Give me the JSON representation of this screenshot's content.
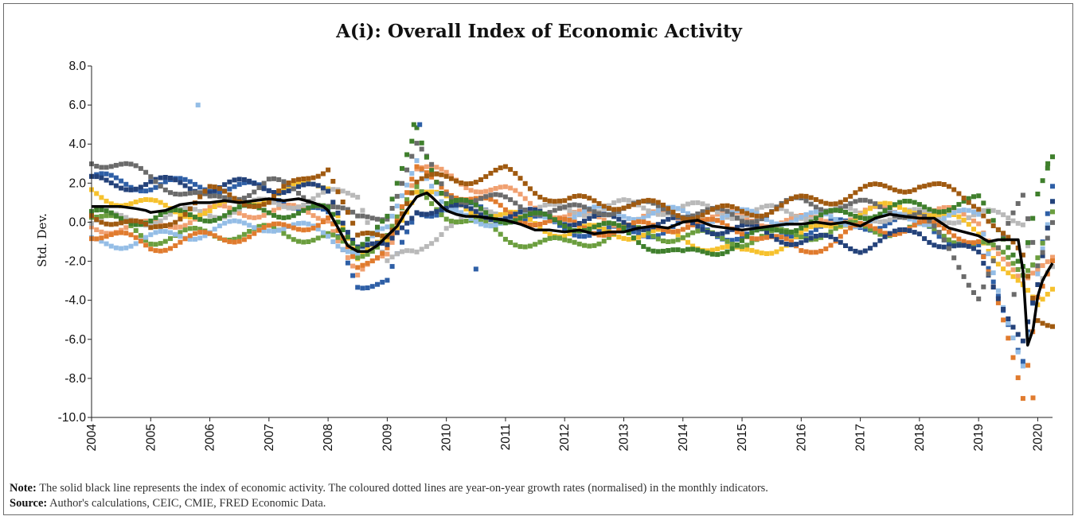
{
  "title": "A(i): Overall Index of Economic Activity",
  "note_label": "Note:",
  "note_text": " The solid black line represents the index of economic activity. The coloured dotted lines are year-on-year growth rates (normalised) in the monthly indicators.",
  "source_label": "Source:",
  "source_text": " Author's calculations, CEIC, CMIE, FRED Economic Data.",
  "chart_data": {
    "type": "line",
    "title": "A(i): Overall Index of Economic Activity",
    "ylabel": "Std. Dev.",
    "xlabel": "",
    "xlim": [
      2004.0,
      2020.25
    ],
    "ylim": [
      -10.0,
      8.0
    ],
    "yticks": [
      -10.0,
      -8.0,
      -6.0,
      -4.0,
      -2.0,
      0.0,
      2.0,
      4.0,
      6.0,
      8.0
    ],
    "ytick_labels": [
      "-10.0",
      "-8.0",
      "-6.0",
      "-4.0",
      "-2.0",
      "0.0",
      "2.0",
      "4.0",
      "6.0",
      "8.0"
    ],
    "xticks": [
      2004,
      2005,
      2006,
      2007,
      2008,
      2009,
      2010,
      2011,
      2012,
      2013,
      2014,
      2015,
      2016,
      2017,
      2018,
      2019,
      2020
    ],
    "xtick_labels": [
      "2004",
      "2005",
      "2006",
      "2007",
      "2008",
      "2009",
      "2010",
      "2011",
      "2012",
      "2013",
      "2014",
      "2015",
      "2016",
      "2017",
      "2018",
      "2019",
      "2020"
    ],
    "grid": false,
    "legend": "none",
    "index_color": "#000000",
    "indicator_colors": [
      "#2e5fa6",
      "#f0a070",
      "#b9b9b9",
      "#f6c12d",
      "#6b9e3e",
      "#94bde6",
      "#e07b2e",
      "#24427a",
      "#6b6b6b",
      "#3f7f2c",
      "#a05a10"
    ],
    "index_series": {
      "name": "Index of economic activity",
      "x": [
        2004.0,
        2004.25,
        2004.5,
        2004.75,
        2004.92,
        2005.0,
        2005.25,
        2005.5,
        2005.75,
        2006.0,
        2006.25,
        2006.5,
        2006.75,
        2007.0,
        2007.25,
        2007.5,
        2007.75,
        2007.92,
        2008.0,
        2008.17,
        2008.33,
        2008.5,
        2008.67,
        2008.83,
        2009.0,
        2009.17,
        2009.33,
        2009.5,
        2009.58,
        2009.67,
        2009.75,
        2009.92,
        2010.0,
        2010.17,
        2010.33,
        2010.5,
        2010.75,
        2011.0,
        2011.25,
        2011.5,
        2011.75,
        2012.0,
        2012.25,
        2012.5,
        2012.75,
        2013.0,
        2013.25,
        2013.5,
        2013.75,
        2014.0,
        2014.25,
        2014.5,
        2014.75,
        2015.0,
        2015.25,
        2015.5,
        2015.75,
        2016.0,
        2016.25,
        2016.5,
        2016.75,
        2017.0,
        2017.25,
        2017.5,
        2017.75,
        2018.0,
        2018.25,
        2018.5,
        2018.75,
        2019.0,
        2019.17,
        2019.33,
        2019.5,
        2019.67,
        2019.75,
        2019.83,
        2019.92,
        2020.0,
        2020.08,
        2020.17,
        2020.25
      ],
      "y": [
        0.8,
        0.8,
        0.8,
        0.7,
        0.6,
        0.5,
        0.6,
        0.9,
        1.0,
        1.0,
        1.1,
        1.0,
        1.1,
        1.2,
        1.1,
        1.2,
        1.0,
        0.8,
        0.6,
        -0.3,
        -1.2,
        -1.5,
        -1.5,
        -1.2,
        -0.7,
        -0.2,
        0.6,
        1.3,
        1.4,
        1.5,
        1.3,
        0.8,
        0.6,
        0.4,
        0.3,
        0.3,
        0.2,
        0.1,
        -0.1,
        -0.4,
        -0.4,
        -0.5,
        -0.4,
        -0.6,
        -0.5,
        -0.5,
        -0.3,
        -0.2,
        -0.3,
        0.0,
        0.1,
        -0.2,
        -0.3,
        -0.4,
        -0.3,
        -0.2,
        -0.1,
        -0.1,
        0.0,
        -0.1,
        0.0,
        -0.2,
        0.2,
        0.4,
        0.3,
        0.2,
        0.2,
        -0.3,
        -0.5,
        -0.7,
        -1.0,
        -0.9,
        -0.9,
        -0.9,
        -2.5,
        -6.3,
        -5.5,
        -3.8,
        -3.0,
        -2.5,
        -2.1
      ]
    },
    "indicator_series": [
      {
        "color": "#2e5fa6",
        "x": [
          2004.0,
          2005.0,
          2006.0,
          2007.0,
          2008.0,
          2008.5,
          2009.0,
          2009.5,
          2010.0,
          2011.0,
          2012.0,
          2013.0,
          2014.0,
          2015.0,
          2016.0,
          2017.0,
          2018.0,
          2019.0,
          2019.75,
          2020.0,
          2020.25
        ],
        "y": [
          2.2,
          1.9,
          1.9,
          1.6,
          0.2,
          -3.0,
          -3.2,
          0.5,
          0.8,
          0.4,
          -0.3,
          -0.6,
          -0.2,
          -0.7,
          -0.4,
          -0.1,
          0.1,
          -1.5,
          -6.8,
          -2.5,
          1.5
        ]
      },
      {
        "color": "#f0a070",
        "x": [
          2004.0,
          2005.0,
          2006.0,
          2007.0,
          2008.0,
          2008.5,
          2009.0,
          2009.5,
          2010.0,
          2011.0,
          2012.0,
          2013.0,
          2014.0,
          2015.0,
          2016.0,
          2017.0,
          2018.0,
          2019.0,
          2019.75,
          2020.0,
          2020.25
        ],
        "y": [
          -0.2,
          -0.3,
          0.5,
          0.6,
          0.4,
          -3.0,
          -1.5,
          2.8,
          2.3,
          1.5,
          0.3,
          0.1,
          0.3,
          0.2,
          0.0,
          0.4,
          0.6,
          0.2,
          -3.5,
          -2.5,
          -1.5
        ]
      },
      {
        "color": "#b9b9b9",
        "x": [
          2004.0,
          2005.0,
          2006.0,
          2007.0,
          2008.0,
          2008.5,
          2009.0,
          2009.5,
          2010.0,
          2011.0,
          2012.0,
          2013.0,
          2014.0,
          2015.0,
          2016.0,
          2017.0,
          2018.0,
          2019.0,
          2019.75,
          2020.0,
          2020.25
        ],
        "y": [
          0.0,
          0.2,
          0.5,
          0.9,
          1.3,
          1.5,
          -2.0,
          -1.7,
          0.0,
          0.5,
          0.6,
          0.8,
          0.7,
          0.5,
          0.5,
          0.4,
          0.3,
          0.3,
          0.2,
          -3.0,
          -2.5
        ]
      },
      {
        "color": "#f6c12d",
        "x": [
          2004.0,
          2005.0,
          2006.0,
          2007.0,
          2008.0,
          2008.5,
          2009.0,
          2009.5,
          2010.0,
          2011.0,
          2012.0,
          2013.0,
          2014.0,
          2015.0,
          2016.0,
          2017.0,
          2018.0,
          2019.0,
          2019.75,
          2020.0,
          2020.25
        ],
        "y": [
          1.5,
          0.8,
          0.5,
          1.4,
          2.0,
          -2.0,
          -1.0,
          1.8,
          1.0,
          0.3,
          -0.5,
          -0.5,
          -0.8,
          -1.7,
          -0.8,
          0.5,
          0.8,
          -0.5,
          -3.5,
          -4.5,
          -3.3
        ]
      },
      {
        "color": "#6b9e3e",
        "x": [
          2004.0,
          2005.0,
          2006.0,
          2007.0,
          2008.0,
          2008.5,
          2009.0,
          2009.5,
          2010.0,
          2011.0,
          2012.0,
          2013.0,
          2014.0,
          2015.0,
          2016.0,
          2017.0,
          2018.0,
          2019.0,
          2019.75,
          2020.0,
          2020.25
        ],
        "y": [
          0.5,
          -0.8,
          -0.6,
          -0.5,
          -0.8,
          -1.8,
          -0.5,
          1.5,
          0.5,
          -0.8,
          -1.2,
          -0.5,
          -0.7,
          -0.9,
          -0.6,
          -0.3,
          -0.4,
          -1.0,
          -2.5,
          -1.5,
          0.5
        ]
      },
      {
        "color": "#94bde6",
        "x": [
          2004.0,
          2005.0,
          2006.0,
          2007.0,
          2008.0,
          2008.5,
          2009.0,
          2009.5,
          2010.0,
          2011.0,
          2012.0,
          2013.0,
          2014.0,
          2015.0,
          2016.0,
          2017.0,
          2018.0,
          2019.0,
          2019.75,
          2020.0,
          2020.25
        ],
        "y": [
          -1.1,
          -0.9,
          -0.4,
          -0.1,
          -0.6,
          -1.5,
          -0.5,
          3.5,
          0.3,
          0.1,
          0.4,
          0.5,
          0.4,
          0.3,
          0.2,
          0.1,
          0.2,
          0.3,
          -7.5,
          -3.0,
          1.0
        ]
      },
      {
        "color": "#e07b2e",
        "x": [
          2004.0,
          2005.0,
          2006.0,
          2007.0,
          2008.0,
          2008.5,
          2009.0,
          2009.5,
          2010.0,
          2011.0,
          2012.0,
          2013.0,
          2014.0,
          2015.0,
          2016.0,
          2017.0,
          2018.0,
          2019.0,
          2019.75,
          2020.0,
          2020.25
        ],
        "y": [
          -0.5,
          -1.2,
          -0.8,
          -0.5,
          0.2,
          -2.5,
          -1.0,
          2.5,
          1.8,
          0.5,
          -0.2,
          -0.4,
          -0.1,
          -0.3,
          -1.5,
          -0.4,
          -0.2,
          -0.8,
          -9.0,
          -3.5,
          -1.8
        ]
      },
      {
        "color": "#24427a",
        "x": [
          2004.0,
          2005.0,
          2006.0,
          2007.0,
          2008.0,
          2008.5,
          2009.0,
          2009.5,
          2010.0,
          2011.0,
          2012.0,
          2013.0,
          2014.0,
          2015.0,
          2016.0,
          2017.0,
          2018.0,
          2019.0,
          2019.75,
          2020.0,
          2020.25
        ],
        "y": [
          2.0,
          2.0,
          1.8,
          1.9,
          1.5,
          -1.0,
          -1.5,
          0.8,
          0.6,
          0.4,
          0.2,
          0.0,
          -0.1,
          -0.4,
          -0.9,
          -1.2,
          -0.5,
          -1.8,
          -6.0,
          -3.5,
          0.8
        ]
      },
      {
        "color": "#6b6b6b",
        "x": [
          2004.0,
          2005.0,
          2006.0,
          2007.0,
          2008.0,
          2008.5,
          2009.0,
          2009.5,
          2010.0,
          2011.0,
          2012.0,
          2013.0,
          2014.0,
          2015.0,
          2016.0,
          2017.0,
          2018.0,
          2019.0,
          2019.75,
          2020.0,
          2020.25
        ],
        "y": [
          3.3,
          2.3,
          1.0,
          2.0,
          1.0,
          0.0,
          0.5,
          3.8,
          1.5,
          1.0,
          0.5,
          0.8,
          0.6,
          0.2,
          1.0,
          0.8,
          0.5,
          -3.6,
          1.2,
          -2.0,
          0.3
        ]
      },
      {
        "color": "#3f7f2c",
        "x": [
          2004.0,
          2005.0,
          2006.0,
          2007.0,
          2008.0,
          2008.5,
          2009.0,
          2009.5,
          2010.0,
          2011.0,
          2012.0,
          2013.0,
          2014.0,
          2015.0,
          2016.0,
          2017.0,
          2018.0,
          2019.0,
          2019.75,
          2020.0,
          2020.25
        ],
        "y": [
          0.3,
          0.2,
          0.4,
          0.6,
          0.5,
          -1.0,
          0.0,
          5.0,
          1.0,
          0.3,
          0.0,
          -0.5,
          -1.8,
          -1.0,
          0.0,
          0.5,
          0.8,
          1.0,
          -2.0,
          1.3,
          3.0
        ]
      },
      {
        "color": "#a05a10",
        "x": [
          2004.0,
          2005.0,
          2006.0,
          2007.0,
          2008.0,
          2008.5,
          2009.0,
          2009.5,
          2010.0,
          2011.0,
          2012.0,
          2013.0,
          2014.0,
          2015.0,
          2016.0,
          2017.0,
          2018.0,
          2019.0,
          2019.75,
          2020.0,
          2020.25
        ],
        "y": [
          0.5,
          -0.5,
          1.5,
          1.0,
          3.0,
          -1.0,
          -0.5,
          2.0,
          2.2,
          2.5,
          1.0,
          1.0,
          0.5,
          0.5,
          1.0,
          1.5,
          2.0,
          1.0,
          -2.0,
          -5.0,
          -5.0
        ]
      }
    ],
    "outliers": [
      {
        "x": 2005.8,
        "y": 6.0,
        "color": "#94bde6"
      },
      {
        "x": 2009.45,
        "y": 5.0,
        "color": "#3f7f2c"
      },
      {
        "x": 2009.55,
        "y": 5.0,
        "color": "#2e5fa6"
      },
      {
        "x": 2010.5,
        "y": -2.4,
        "color": "#2e5fa6"
      },
      {
        "x": 2019.6,
        "y": -3.7,
        "color": "#6b6b6b"
      },
      {
        "x": 2020.17,
        "y": 3.0,
        "color": "#3f7f2c"
      },
      {
        "x": 2019.92,
        "y": -9.0,
        "color": "#e07b2e"
      }
    ]
  }
}
